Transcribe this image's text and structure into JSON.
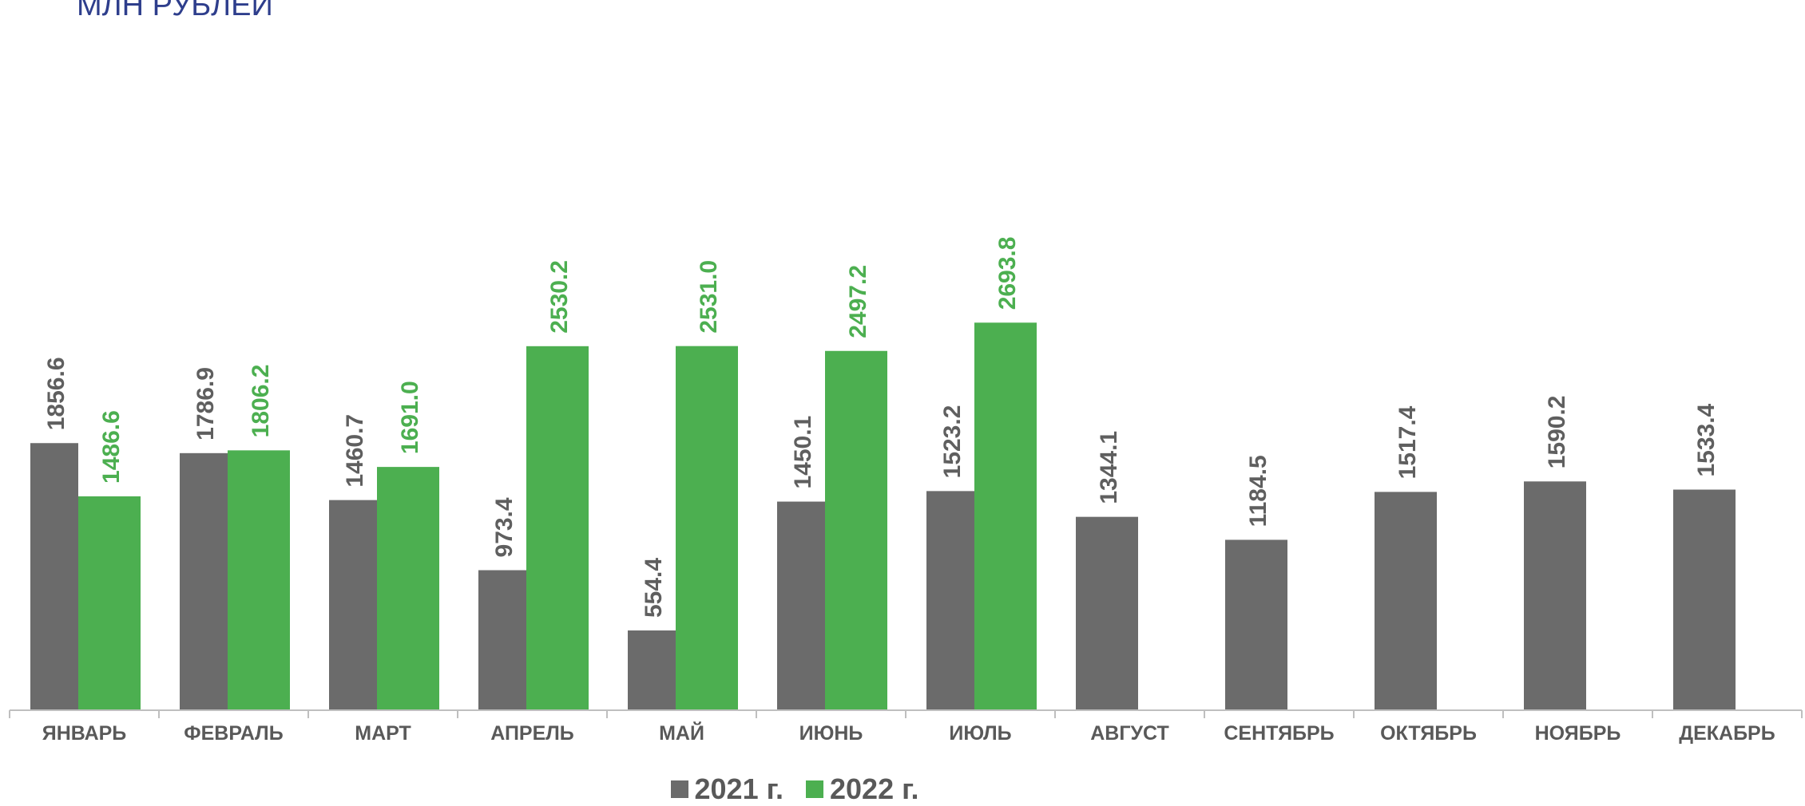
{
  "header": {
    "unit_label": "МЛН РУБЛЕЙ"
  },
  "colors": {
    "series_2021": "#6b6b6b",
    "series_2022": "#4caf50",
    "label_2021": "#5f5f5f",
    "label_2022": "#4caf50",
    "axis": "#bfbfbf"
  },
  "chart_data": {
    "type": "bar",
    "title": "",
    "xlabel": "",
    "ylabel": "",
    "ylim": [
      0,
      2900
    ],
    "grid": false,
    "legend_position": "bottom",
    "categories": [
      "ЯНВАРЬ",
      "ФЕВРАЛЬ",
      "МАРТ",
      "АПРЕЛЬ",
      "МАЙ",
      "ИЮНЬ",
      "ИЮЛЬ",
      "АВГУСТ",
      "СЕНТЯБРЬ",
      "ОКТЯБРЬ",
      "НОЯБРЬ",
      "ДЕКАБРЬ"
    ],
    "series": [
      {
        "name": "2021 г.",
        "values": [
          1856.6,
          1786.9,
          1460.7,
          973.4,
          554.4,
          1450.1,
          1523.2,
          1344.1,
          1184.5,
          1517.4,
          1590.2,
          1533.4
        ]
      },
      {
        "name": "2022 г.",
        "values": [
          1486.6,
          1806.2,
          1691.0,
          2530.2,
          2531.0,
          2497.2,
          2693.8,
          null,
          null,
          null,
          null,
          null
        ]
      }
    ]
  }
}
